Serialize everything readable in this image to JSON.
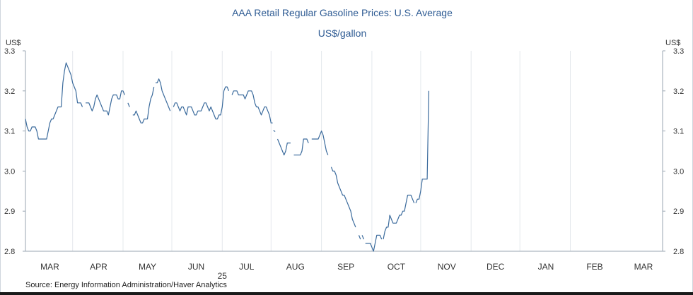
{
  "chart_data": {
    "type": "line",
    "title": "AAA Retail Regular Gasoline Prices: U.S. Average",
    "subtitle": "US$/gallon",
    "ylabel_left": "US$",
    "ylabel_right": "US$",
    "ylim": [
      2.8,
      3.3
    ],
    "y_ticks": [
      {
        "value": 3.3,
        "label": "3.3"
      },
      {
        "value": 3.2,
        "label": "3.2"
      },
      {
        "value": 3.1,
        "label": "3.1"
      },
      {
        "value": 3.0,
        "label": "3.0"
      },
      {
        "value": 2.9,
        "label": "2.9"
      },
      {
        "value": 2.8,
        "label": "2.8"
      }
    ],
    "x_range_days": [
      0,
      360
    ],
    "month_dividers_days": [
      29,
      60,
      90,
      121,
      151,
      182,
      213,
      243,
      274,
      304,
      335
    ],
    "month_labels": [
      {
        "label": "MAR",
        "day": 15
      },
      {
        "label": "APR",
        "day": 45
      },
      {
        "label": "MAY",
        "day": 75
      },
      {
        "label": "JUN",
        "day": 105
      },
      {
        "label": "JUL",
        "day": 136
      },
      {
        "label": "AUG",
        "day": 166
      },
      {
        "label": "SEP",
        "day": 197
      },
      {
        "label": "OCT",
        "day": 228
      },
      {
        "label": "NOV",
        "day": 259
      },
      {
        "label": "DEC",
        "day": 289
      },
      {
        "label": "JAN",
        "day": 320
      },
      {
        "label": "FEB",
        "day": 350
      },
      {
        "label": "MAR",
        "day": 380
      }
    ],
    "year_label": {
      "label": "25",
      "day": 121
    },
    "series": [
      {
        "name": "AAA Retail Regular Gasoline Price, U.S. Average",
        "color": "#3a6a9c",
        "segments": [
          [
            [
              0,
              3.13
            ],
            [
              1,
              3.11
            ],
            [
              2,
              3.1
            ],
            [
              3,
              3.1
            ],
            [
              4,
              3.11
            ],
            [
              5,
              3.11
            ],
            [
              6,
              3.11
            ],
            [
              7,
              3.1
            ],
            [
              8,
              3.08
            ],
            [
              9,
              3.08
            ],
            [
              10,
              3.08
            ],
            [
              11,
              3.08
            ],
            [
              12,
              3.08
            ],
            [
              13,
              3.08
            ],
            [
              14,
              3.1
            ],
            [
              15,
              3.12
            ],
            [
              16,
              3.13
            ],
            [
              17,
              3.13
            ],
            [
              18,
              3.14
            ],
            [
              19,
              3.15
            ],
            [
              20,
              3.16
            ],
            [
              21,
              3.16
            ],
            [
              22,
              3.16
            ],
            [
              23,
              3.22
            ],
            [
              24,
              3.25
            ],
            [
              25,
              3.27
            ],
            [
              26,
              3.26
            ],
            [
              27,
              3.25
            ],
            [
              28,
              3.24
            ],
            [
              29,
              3.22
            ],
            [
              30,
              3.21
            ],
            [
              31,
              3.2
            ],
            [
              32,
              3.17
            ],
            [
              33,
              3.17
            ],
            [
              34,
              3.17
            ],
            [
              35,
              3.16
            ]
          ],
          [
            [
              37,
              3.17
            ],
            [
              38,
              3.17
            ],
            [
              39,
              3.17
            ],
            [
              40,
              3.16
            ],
            [
              41,
              3.15
            ],
            [
              42,
              3.16
            ],
            [
              43,
              3.18
            ],
            [
              44,
              3.19
            ],
            [
              45,
              3.18
            ],
            [
              46,
              3.17
            ],
            [
              47,
              3.16
            ],
            [
              48,
              3.15
            ],
            [
              49,
              3.15
            ],
            [
              50,
              3.15
            ],
            [
              51,
              3.14
            ],
            [
              52,
              3.16
            ],
            [
              53,
              3.18
            ],
            [
              54,
              3.19
            ],
            [
              55,
              3.19
            ],
            [
              56,
              3.19
            ],
            [
              57,
              3.18
            ],
            [
              58,
              3.18
            ],
            [
              59,
              3.2
            ],
            [
              60,
              3.2
            ],
            [
              61,
              3.19
            ]
          ],
          [
            [
              63,
              3.17
            ],
            [
              64,
              3.16
            ]
          ],
          [
            [
              66,
              3.14
            ],
            [
              67,
              3.14
            ],
            [
              68,
              3.15
            ],
            [
              69,
              3.14
            ],
            [
              70,
              3.13
            ],
            [
              71,
              3.12
            ],
            [
              72,
              3.12
            ],
            [
              73,
              3.13
            ],
            [
              74,
              3.13
            ],
            [
              75,
              3.13
            ],
            [
              76,
              3.16
            ],
            [
              77,
              3.18
            ],
            [
              78,
              3.19
            ],
            [
              79,
              3.21
            ]
          ],
          [
            [
              80,
              3.22
            ],
            [
              81,
              3.22
            ],
            [
              82,
              3.23
            ],
            [
              83,
              3.22
            ],
            [
              84,
              3.2
            ],
            [
              85,
              3.19
            ],
            [
              86,
              3.18
            ],
            [
              87,
              3.17
            ],
            [
              88,
              3.16
            ],
            [
              89,
              3.15
            ]
          ],
          [
            [
              91,
              3.16
            ],
            [
              92,
              3.17
            ],
            [
              93,
              3.17
            ],
            [
              94,
              3.16
            ],
            [
              95,
              3.15
            ],
            [
              96,
              3.16
            ],
            [
              97,
              3.16
            ],
            [
              98,
              3.15
            ],
            [
              99,
              3.14
            ],
            [
              100,
              3.16
            ],
            [
              101,
              3.16
            ],
            [
              102,
              3.16
            ],
            [
              103,
              3.15
            ],
            [
              104,
              3.14
            ],
            [
              105,
              3.14
            ],
            [
              106,
              3.15
            ],
            [
              107,
              3.15
            ],
            [
              108,
              3.15
            ],
            [
              109,
              3.16
            ],
            [
              110,
              3.17
            ],
            [
              111,
              3.17
            ],
            [
              112,
              3.16
            ],
            [
              113,
              3.15
            ],
            [
              114,
              3.16
            ],
            [
              115,
              3.15
            ],
            [
              116,
              3.14
            ],
            [
              117,
              3.13
            ],
            [
              118,
              3.13
            ],
            [
              119,
              3.14
            ],
            [
              120,
              3.14
            ],
            [
              121,
              3.16
            ],
            [
              122,
              3.2
            ],
            [
              123,
              3.21
            ],
            [
              124,
              3.21
            ],
            [
              125,
              3.2
            ]
          ],
          [
            [
              127,
              3.19
            ],
            [
              128,
              3.2
            ],
            [
              129,
              3.2
            ],
            [
              130,
              3.2
            ],
            [
              131,
              3.19
            ],
            [
              132,
              3.19
            ],
            [
              133,
              3.19
            ],
            [
              134,
              3.19
            ],
            [
              135,
              3.18
            ],
            [
              136,
              3.19
            ],
            [
              137,
              3.2
            ],
            [
              138,
              3.2
            ],
            [
              139,
              3.2
            ],
            [
              140,
              3.19
            ],
            [
              141,
              3.17
            ],
            [
              142,
              3.16
            ],
            [
              143,
              3.16
            ],
            [
              144,
              3.15
            ],
            [
              145,
              3.14
            ],
            [
              146,
              3.15
            ],
            [
              147,
              3.16
            ],
            [
              148,
              3.16
            ],
            [
              149,
              3.15
            ],
            [
              150,
              3.14
            ],
            [
              151,
              3.12
            ],
            [
              152,
              3.12
            ]
          ],
          [
            [
              153,
              3.1
            ]
          ],
          [
            [
              155,
              3.08
            ],
            [
              156,
              3.07
            ],
            [
              157,
              3.06
            ],
            [
              158,
              3.05
            ],
            [
              159,
              3.04
            ],
            [
              160,
              3.05
            ],
            [
              161,
              3.07
            ],
            [
              162,
              3.07
            ],
            [
              163,
              3.07
            ]
          ],
          [
            [
              165,
              3.04
            ],
            [
              166,
              3.04
            ],
            [
              167,
              3.04
            ],
            [
              168,
              3.04
            ],
            [
              169,
              3.04
            ],
            [
              170,
              3.05
            ],
            [
              171,
              3.08
            ],
            [
              172,
              3.08
            ],
            [
              173,
              3.08
            ],
            [
              174,
              3.07
            ]
          ],
          [
            [
              176,
              3.08
            ],
            [
              177,
              3.08
            ],
            [
              178,
              3.08
            ],
            [
              179,
              3.08
            ],
            [
              180,
              3.08
            ],
            [
              181,
              3.09
            ],
            [
              182,
              3.1
            ],
            [
              183,
              3.09
            ],
            [
              184,
              3.07
            ],
            [
              185,
              3.05
            ],
            [
              186,
              3.04
            ]
          ],
          [
            [
              188,
              3.01
            ],
            [
              189,
              3.0
            ],
            [
              190,
              3.0
            ],
            [
              191,
              2.99
            ],
            [
              192,
              2.97
            ],
            [
              193,
              2.96
            ],
            [
              194,
              2.95
            ],
            [
              195,
              2.94
            ],
            [
              196,
              2.94
            ],
            [
              197,
              2.93
            ],
            [
              198,
              2.92
            ],
            [
              199,
              2.91
            ],
            [
              200,
              2.9
            ],
            [
              201,
              2.88
            ],
            [
              202,
              2.87
            ],
            [
              203,
              2.86
            ]
          ],
          [
            [
              205,
              2.84
            ],
            [
              206,
              2.83
            ]
          ],
          [
            [
              207,
              2.84
            ],
            [
              208,
              2.83
            ]
          ],
          [
            [
              209,
              2.82
            ],
            [
              210,
              2.82
            ],
            [
              211,
              2.82
            ],
            [
              212,
              2.82
            ],
            [
              213,
              2.81
            ],
            [
              214,
              2.8
            ],
            [
              215,
              2.82
            ],
            [
              216,
              2.84
            ],
            [
              217,
              2.84
            ],
            [
              218,
              2.84
            ],
            [
              219,
              2.83
            ]
          ],
          [
            [
              220,
              2.83
            ],
            [
              221,
              2.85
            ],
            [
              222,
              2.86
            ],
            [
              223,
              2.86
            ],
            [
              224,
              2.89
            ],
            [
              225,
              2.88
            ],
            [
              226,
              2.87
            ],
            [
              227,
              2.87
            ],
            [
              228,
              2.87
            ],
            [
              229,
              2.88
            ],
            [
              230,
              2.89
            ],
            [
              231,
              2.89
            ],
            [
              232,
              2.9
            ],
            [
              233,
              2.9
            ],
            [
              234,
              2.92
            ],
            [
              235,
              2.94
            ],
            [
              236,
              2.94
            ],
            [
              237,
              2.94
            ],
            [
              238,
              2.93
            ],
            [
              239,
              2.92
            ]
          ],
          [
            [
              240,
              2.92
            ],
            [
              241,
              2.93
            ],
            [
              242,
              2.93
            ],
            [
              243,
              2.95
            ],
            [
              244,
              2.98
            ],
            [
              245,
              2.98
            ],
            [
              246,
              2.98
            ],
            [
              247,
              2.98
            ],
            [
              248,
              3.2
            ]
          ]
        ]
      }
    ],
    "grid": "vertical month dividers"
  },
  "source": "Source:  Energy Information Administration/Haver Analytics"
}
